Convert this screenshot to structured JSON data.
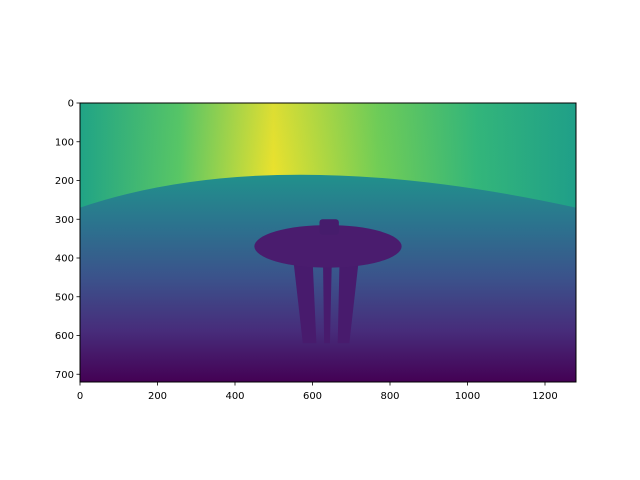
{
  "chart_data": {
    "type": "heatmap",
    "title": "",
    "xlabel": "",
    "ylabel": "",
    "colormap": "viridis",
    "xlim": [
      0,
      1280
    ],
    "ylim": [
      720,
      0
    ],
    "xticks": [
      0,
      200,
      400,
      600,
      800,
      1000,
      1200
    ],
    "yticks": [
      0,
      100,
      200,
      300,
      400,
      500,
      600,
      700
    ],
    "xtick_labels": [
      "0",
      "200",
      "400",
      "600",
      "800",
      "1000",
      "1200"
    ],
    "ytick_labels": [
      "0",
      "100",
      "200",
      "300",
      "400",
      "500",
      "600",
      "700"
    ],
    "grid": false,
    "colors": {
      "high": "#fde725",
      "mid_high": "#5ec962",
      "mid": "#21918c",
      "mid_low": "#3b528b",
      "low": "#440154"
    },
    "regions": {
      "sky_bright_center_x": 500,
      "horizon_y": 270,
      "saucer": {
        "cx": 640,
        "cy": 370,
        "rx": 190,
        "ry": 55
      },
      "spire": {
        "x0": 618,
        "x1": 668,
        "y0": 300,
        "y1": 340
      },
      "legs": [
        {
          "x_top": [
            550,
            600
          ],
          "x_bottom": [
            575,
            610
          ],
          "y_top": 400,
          "y_bottom": 620
        },
        {
          "x_top": [
            627,
            650
          ],
          "x_bottom": [
            630,
            645
          ],
          "y_top": 400,
          "y_bottom": 620
        },
        {
          "x_top": [
            670,
            720
          ],
          "x_bottom": [
            665,
            695
          ],
          "y_top": 400,
          "y_bottom": 620
        }
      ],
      "value_sky_min": 0.62,
      "value_sky_max": 1.0,
      "value_ground_top": 0.48,
      "value_ground_bottom": 0.0,
      "value_structure": 0.08
    }
  }
}
